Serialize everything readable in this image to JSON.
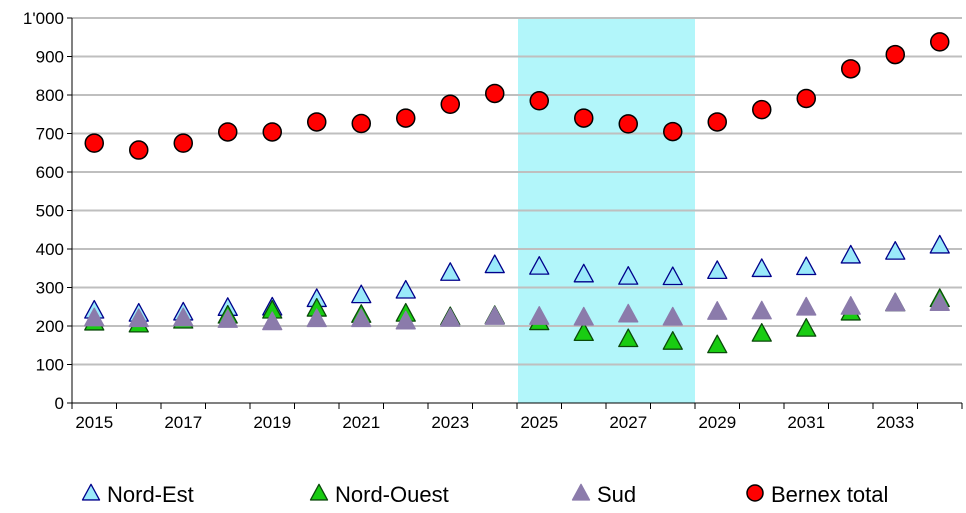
{
  "chart_data": {
    "type": "scatter",
    "title": "",
    "xlabel": "",
    "ylabel": "",
    "ylim": [
      0,
      1000
    ],
    "y_ticks": [
      0,
      100,
      200,
      300,
      400,
      500,
      600,
      700,
      800,
      900,
      1000
    ],
    "y_tick_labels": [
      "0",
      "100",
      "200",
      "300",
      "400",
      "500",
      "600",
      "700",
      "800",
      "900",
      "1'000"
    ],
    "x_range": [
      2014.5,
      2034.5
    ],
    "x_tick_labels": [
      "2015",
      "2017",
      "2019",
      "2021",
      "2023",
      "2025",
      "2027",
      "2029",
      "2031",
      "2033"
    ],
    "x_tick_positions": [
      2015,
      2017,
      2019,
      2021,
      2023,
      2025,
      2027,
      2029,
      2031,
      2033
    ],
    "grid": "horizontal",
    "highlight_band": {
      "from": 2025,
      "to": 2029,
      "color": "#b2f6fa"
    },
    "legend_position": "bottom",
    "x": [
      2015,
      2016,
      2017,
      2018,
      2019,
      2020,
      2021,
      2022,
      2023,
      2024,
      2025,
      2026,
      2027,
      2028,
      2029,
      2030,
      2031,
      2032,
      2033,
      2034
    ],
    "series": [
      {
        "name": "Nord-Est",
        "marker": "triangle",
        "color": "#9ae9fa",
        "stroke": "#00008b",
        "values": [
          238,
          230,
          233,
          245,
          246,
          268,
          278,
          290,
          336,
          356,
          352,
          332,
          326,
          325,
          341,
          346,
          351,
          381,
          391,
          407
        ]
      },
      {
        "name": "Nord-Ouest",
        "marker": "triangle",
        "color": "#19cc12",
        "stroke": "#0a4a0a",
        "values": [
          207,
          202,
          212,
          225,
          238,
          243,
          227,
          230,
          221,
          224,
          208,
          180,
          164,
          157,
          148,
          178,
          191,
          233,
          257,
          268
        ]
      },
      {
        "name": "Sud",
        "marker": "triangle",
        "color": "#8b7bab",
        "stroke": "#8b7bab",
        "values": [
          218,
          216,
          218,
          214,
          208,
          216,
          216,
          210,
          217,
          222,
          222,
          220,
          228,
          220,
          235,
          236,
          246,
          248,
          257,
          258
        ]
      },
      {
        "name": "Bernex total",
        "marker": "circle",
        "color": "#ff0000",
        "stroke": "#000000",
        "values": [
          675,
          657,
          675,
          704,
          704,
          730,
          726,
          740,
          776,
          804,
          785,
          740,
          725,
          705,
          730,
          762,
          791,
          868,
          905,
          938
        ]
      }
    ]
  }
}
